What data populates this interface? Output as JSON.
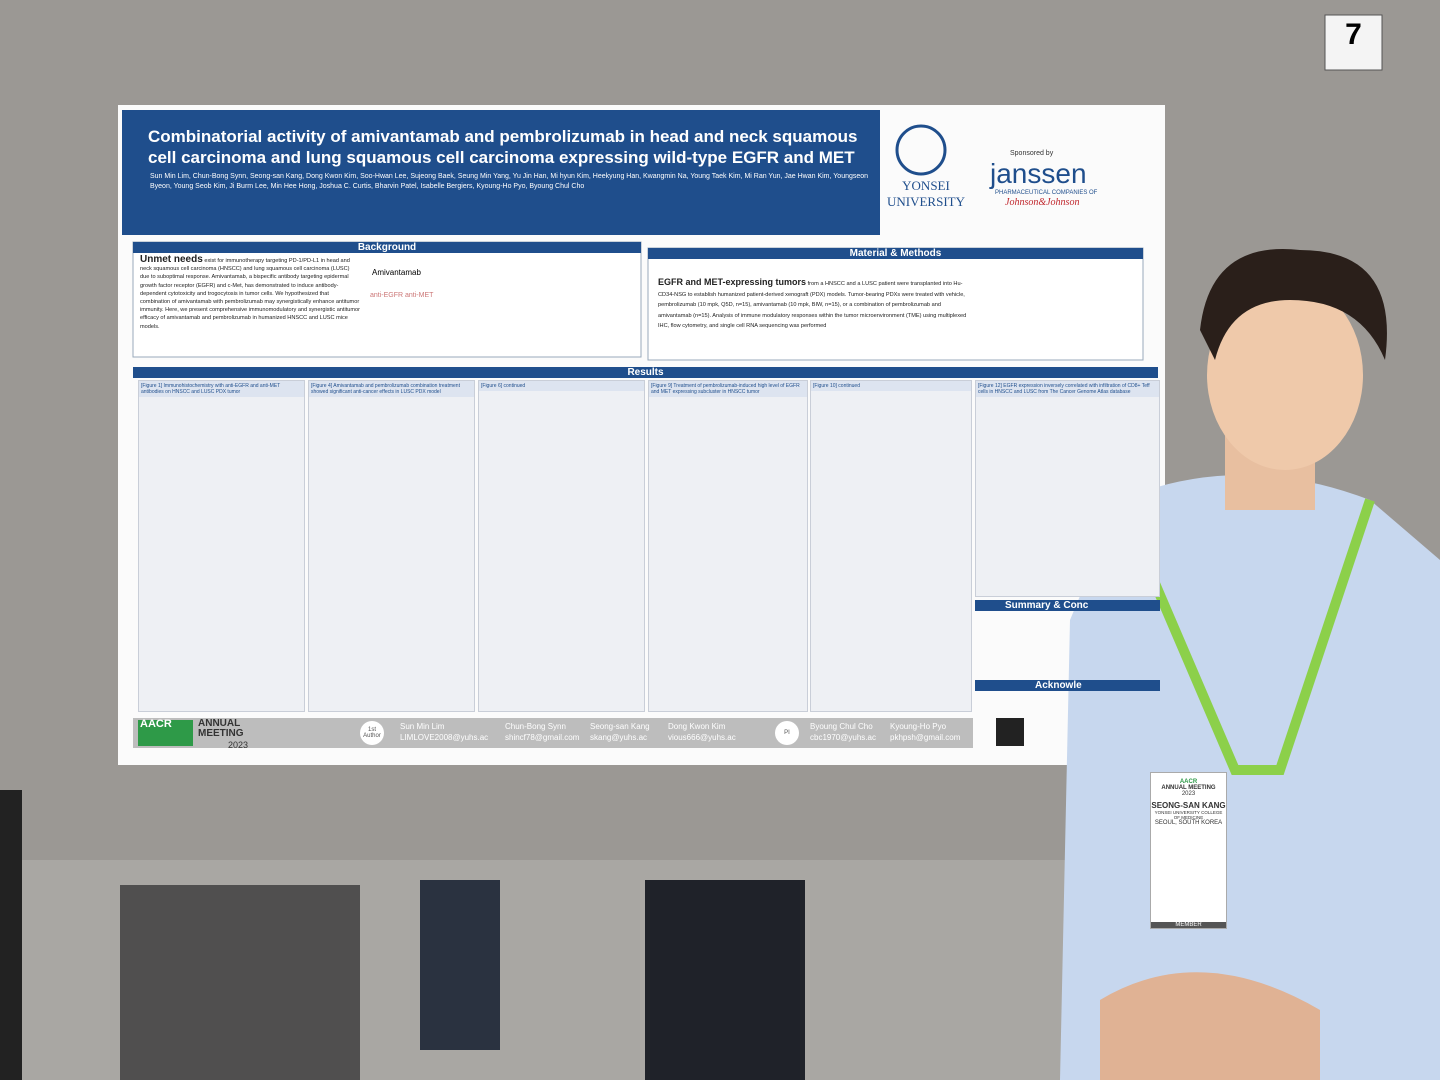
{
  "board_number": "7",
  "poster": {
    "title": "Combinatorial activity of amivantamab and pembrolizumab in head and neck squamous cell carcinoma and lung squamous cell carcinoma expressing wild-type EGFR and MET",
    "authors": "Sun Min Lim, Chun-Bong Synn, Seong-san Kang, Dong Kwon Kim, Soo-Hwan Lee, Sujeong Baek, Seung Min Yang, Yu Jin Han, Mi hyun Kim, Heekyung Han, Kwangmin Na, Young Taek Kim, Mi Ran Yun, Jae Hwan Kim, Youngseon Byeon, Young Seob Kim, Ji Burm Lee, Min Hee Hong, Joshua C. Curtis, Bharvin Patel, Isabelle Bergiers, Kyoung-Ho Pyo, Byoung Chul Cho",
    "university": "YONSEI UNIVERSITY",
    "sponsor": {
      "label": "Sponsored by",
      "name": "janssen",
      "tagline": "PHARMACEUTICAL COMPANIES OF",
      "parent": "Johnson&Johnson"
    },
    "background": {
      "heading": "Background",
      "lead": "Unmet needs",
      "text": "exist for immunotherapy targeting PD-1/PD-L1 in head and neck squamous cell carcinoma (HNSCC) and lung squamous cell carcinoma (LUSC) due to suboptimal response. Amivantamab, a bispecific antibody targeting epidermal growth factor receptor (EGFR) and c-Met, has demonstrated to induce antibody-dependent cytotoxicity and trogocytosis in tumor cells. We hypothesized that combination of amivantamab with pembrolizumab may synergistically enhance antitumor immunity. Here, we present comprehensive immunomodulatory and synergistic antitumor efficacy of amivantamab and pembrolizumab in humanized HNSCC and LUSC mice models.",
      "drug": "Amivantamab",
      "anti_egfr": "anti-EGFR",
      "anti_met": "anti-MET"
    },
    "methods": {
      "heading": "Material & Methods",
      "lead": "EGFR and MET-expressing tumors",
      "text": "from a HNSCC and a LUSC patient were transplanted into Hu-CD34-NSG to establish humanized patient-derived xenograft (PDX) models. Tumor-bearing PDXs were treated with vehicle, pembrolizumab (10 mpk, Q5D, n=15), amivantamab (10 mpk, BIW, n=15), or a combination of pembrolizumab and amivantamab (n=15). Analysis of immune modulatory responses within the tumor microenvironment (TME) using multiplexed IHC, flow cytometry, and single cell RNA sequencing was performed"
    },
    "results": {
      "heading": "Results"
    },
    "figures": [
      "[Figure 1] Immunohistochemistry with anti-EGFR and anti-MET antibodies on HNSCC and LUSC PDX tumor",
      "[Figure 4] Amivantamab and pembrolizumab combination treatment showed significant anti-cancer effects in LUSC PDX model",
      "[Figure 6] continued",
      "[Figure 9] Treatment of pembrolizumab-induced high level of EGFR and MET expressing subcluster in HNSCC tumor",
      "[Figure 10] continued",
      "[Figure 12] EGFR expression inversely correlated with infiltration of CD8+ Teff cells in HNSCC and LUSC from The Cancer Genome Atlas database"
    ],
    "summary": "Summary & Conc",
    "acknowledgement": "Acknowle",
    "footer": {
      "org": "AACR",
      "meeting": "ANNUAL MEETING",
      "year": "2023",
      "contacts": [
        {
          "role": "1st Author",
          "name": "Sun Min Lim",
          "email": "LIMLOVE2008@yuhs.ac"
        },
        {
          "name": "Chun-Bong Synn",
          "email": "shincf78@gmail.com"
        },
        {
          "name": "Seong-san Kang",
          "email": "skang@yuhs.ac"
        },
        {
          "name": "Dong Kwon Kim",
          "email": "vious666@yuhs.ac"
        },
        {
          "role": "PI",
          "name": "Byoung Chul Cho",
          "email": "cbc1970@yuhs.ac"
        },
        {
          "name": "Kyoung-Ho Pyo",
          "email": "pkhpsh@gmail.com"
        }
      ]
    }
  },
  "badge": {
    "org": "AACR",
    "meeting": "ANNUAL MEETING",
    "year": "2023",
    "name": "SEONG-SAN KANG",
    "affiliation": "YONSEI UNIVERSITY COLLEGE OF MEDICINE",
    "location": "SEOUL, SOUTH KOREA",
    "type": "MEMBER"
  }
}
